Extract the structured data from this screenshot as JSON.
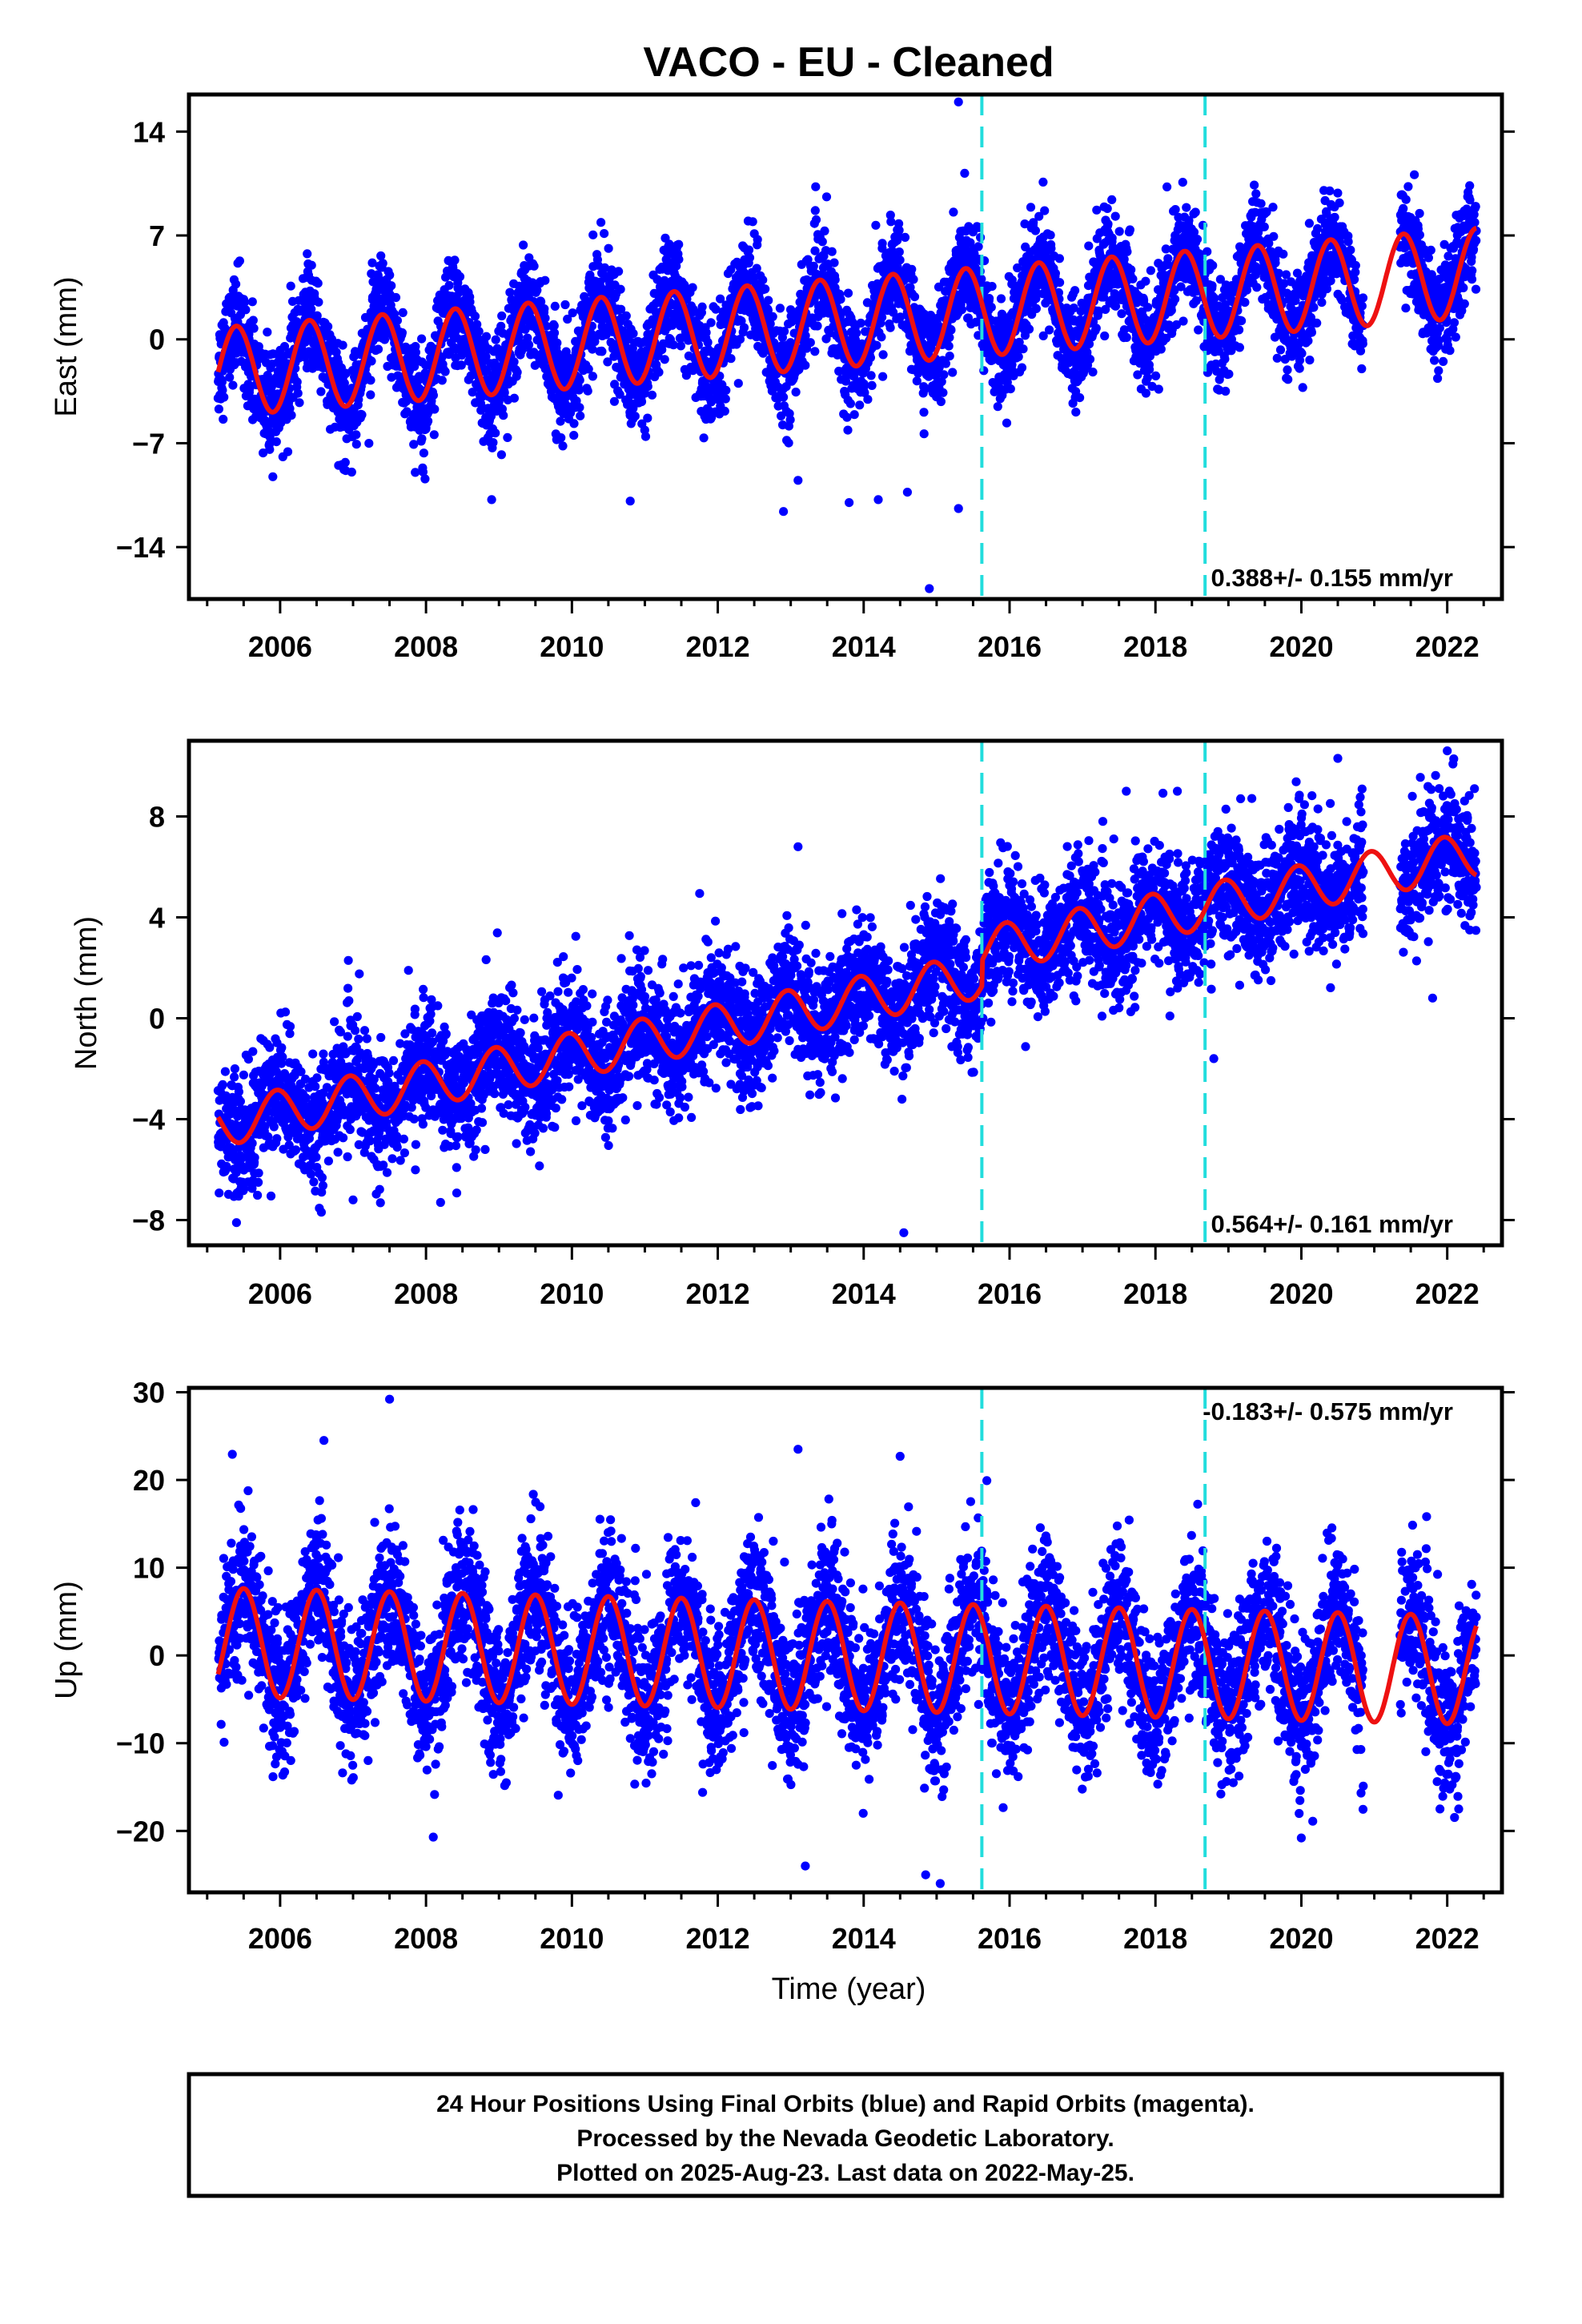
{
  "title": "VACO  - EU - Cleaned",
  "xlabel": "Time (year)",
  "footer": {
    "line1": "24 Hour Positions Using Final Orbits (blue) and Rapid Orbits (magenta).",
    "line2": "Processed by the Nevada Geodetic Laboratory.",
    "line3": "Plotted on 2025-Aug-23. Last data on 2022-May-25."
  },
  "colors": {
    "data": "#0000ff",
    "model": "#ee1111",
    "event": "#22dddd",
    "axis": "#000000"
  },
  "chart_data": [
    {
      "type": "scatter",
      "panel": "east",
      "ylabel": "East (mm)",
      "xlim": [
        2004.75,
        2022.75
      ],
      "ylim": [
        -17.5,
        16.5
      ],
      "xticks": [
        2006,
        2008,
        2010,
        2012,
        2014,
        2016,
        2018,
        2020,
        2022
      ],
      "xtick_labels": [
        "2006",
        "2008",
        "2010",
        "2012",
        "2014",
        "2016",
        "2018",
        "2020",
        "2022"
      ],
      "yticks": [
        -14,
        -7,
        0,
        7,
        14
      ],
      "ytick_labels": [
        "−14",
        "−7",
        "0",
        "7",
        "14"
      ],
      "rate_label": "0.388+/- 0.155 mm/yr",
      "event_lines": [
        2015.62,
        2018.68
      ],
      "model": {
        "start": 2005.15,
        "end": 2022.4,
        "offset": -2.2,
        "trend": 0.388,
        "amplitude": 3.0,
        "peak_phase": 0.4
      },
      "data_range": {
        "start": 2005.15,
        "end": 2022.4,
        "scatter_sd": 1.7,
        "gaps": [
          [
            2020.85,
            2021.35
          ]
        ]
      },
      "outliers": [
        [
          2015.3,
          16.0
        ],
        [
          2014.9,
          -16.8
        ],
        [
          2012.9,
          -11.6
        ],
        [
          2013.8,
          -11.0
        ],
        [
          2014.2,
          -10.8
        ],
        [
          2015.3,
          -11.4
        ],
        [
          2008.9,
          -10.8
        ],
        [
          2010.8,
          -10.9
        ],
        [
          2013.1,
          -9.5
        ],
        [
          2014.6,
          -10.3
        ]
      ]
    },
    {
      "type": "scatter",
      "panel": "north",
      "ylabel": "North (mm)",
      "xlim": [
        2004.75,
        2022.75
      ],
      "ylim": [
        -9,
        11
      ],
      "xticks": [
        2006,
        2008,
        2010,
        2012,
        2014,
        2016,
        2018,
        2020,
        2022
      ],
      "xtick_labels": [
        "2006",
        "2008",
        "2010",
        "2012",
        "2014",
        "2016",
        "2018",
        "2020",
        "2022"
      ],
      "yticks": [
        -8,
        -4,
        0,
        4,
        8
      ],
      "ytick_labels": [
        "−8",
        "−4",
        "0",
        "4",
        "8"
      ],
      "rate_label": "0.564+/- 0.161 mm/yr",
      "event_lines": [
        2015.62,
        2018.68
      ],
      "model": {
        "start": 2005.15,
        "end": 2022.4,
        "offset": -4.2,
        "trend": 0.564,
        "amplitude": 0.9,
        "peak_phase": 0.95,
        "step_at": 2015.62,
        "step": 1.0
      },
      "data_range": {
        "start": 2005.15,
        "end": 2022.4,
        "scatter_sd": 1.2,
        "gaps": [
          [
            2020.85,
            2021.35
          ]
        ]
      },
      "outliers": [
        [
          2014.55,
          -8.5
        ],
        [
          2013.1,
          6.8
        ],
        [
          2022.0,
          10.6
        ],
        [
          2020.5,
          10.3
        ],
        [
          2017.6,
          9.0
        ],
        [
          2018.3,
          9.0
        ],
        [
          2007.0,
          -7.2
        ],
        [
          2008.2,
          -7.3
        ],
        [
          2021.8,
          0.8
        ],
        [
          2018.8,
          -1.6
        ]
      ]
    },
    {
      "type": "scatter",
      "panel": "up",
      "ylabel": "Up (mm)",
      "xlim": [
        2004.75,
        2022.75
      ],
      "ylim": [
        -27,
        30.5
      ],
      "xticks": [
        2006,
        2008,
        2010,
        2012,
        2014,
        2016,
        2018,
        2020,
        2022
      ],
      "xtick_labels": [
        "2006",
        "2008",
        "2010",
        "2012",
        "2014",
        "2016",
        "2018",
        "2020",
        "2022"
      ],
      "yticks": [
        -20,
        -10,
        0,
        10,
        20,
        30
      ],
      "ytick_labels": [
        "−20",
        "−10",
        "0",
        "10",
        "20",
        "30"
      ],
      "rate_label": "-0.183+/- 0.575 mm/yr",
      "event_lines": [
        2015.62,
        2018.68
      ],
      "model": {
        "start": 2005.15,
        "end": 2022.4,
        "offset": 1.5,
        "trend": -0.183,
        "amplitude": 6.2,
        "peak_phase": 0.5
      },
      "data_range": {
        "start": 2005.15,
        "end": 2022.4,
        "scatter_sd": 4.2,
        "gaps": [
          [
            2020.85,
            2021.35
          ]
        ]
      },
      "outliers": [
        [
          2007.5,
          29.2
        ],
        [
          2015.05,
          -26.0
        ],
        [
          2014.85,
          -25.0
        ],
        [
          2013.2,
          -24.0
        ],
        [
          2008.1,
          -20.7
        ],
        [
          2020.0,
          -20.8
        ],
        [
          2006.6,
          24.5
        ],
        [
          2013.1,
          23.5
        ],
        [
          2014.5,
          22.7
        ],
        [
          2021.9,
          -17.5
        ]
      ]
    }
  ]
}
